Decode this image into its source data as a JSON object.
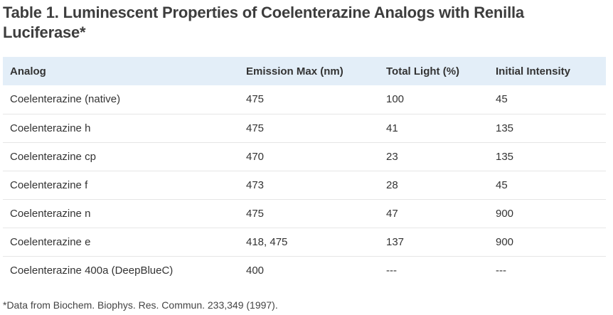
{
  "title": "Table 1. Luminescent Properties of Coelenterazine Analogs with Renilla Luciferase*",
  "table": {
    "headers": [
      "Analog",
      "Emission Max (nm)",
      "Total Light (%)",
      "Initial Intensity"
    ],
    "rows": [
      [
        "Coelenterazine (native)",
        "475",
        "100",
        "45"
      ],
      [
        "Coelenterazine h",
        "475",
        "41",
        "135"
      ],
      [
        "Coelenterazine cp",
        "470",
        "23",
        "135"
      ],
      [
        "Coelenterazine f",
        "473",
        "28",
        "45"
      ],
      [
        "Coelenterazine n",
        "475",
        "47",
        "900"
      ],
      [
        "Coelenterazine e",
        "418, 475",
        "137",
        "900"
      ],
      [
        "Coelenterazine 400a (DeepBlueC)",
        "400",
        "---",
        "---"
      ]
    ]
  },
  "footnote": "*Data from Biochem. Biophys. Res. Commun. 233,349 (1997).",
  "colors": {
    "header_bg": "#e3eef8",
    "row_divider": "#e6e6e6",
    "text": "#333333"
  }
}
